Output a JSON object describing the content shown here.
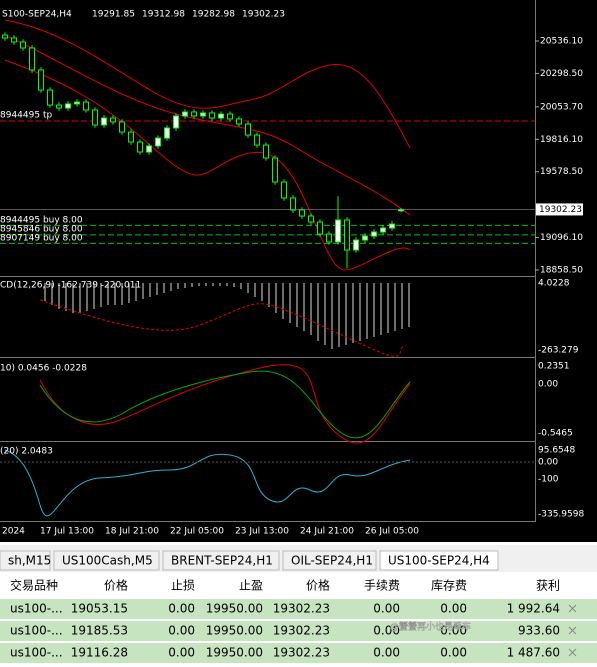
{
  "chart_data": {
    "type": "candlestick",
    "symbol": "S100-SEP24,H4",
    "ylim": [
      18821.9,
      20836.5
    ],
    "yticks": [
      {
        "value": 20536.1,
        "label": "20536.10"
      },
      {
        "value": 20298.5,
        "label": "20298.50"
      },
      {
        "value": 20053.7,
        "label": "20053.70"
      },
      {
        "value": 19816.1,
        "label": "19816.10"
      },
      {
        "value": 19578.5,
        "label": "19578.50"
      },
      {
        "value": 19096.1,
        "label": "19096.10"
      },
      {
        "value": 18858.5,
        "label": "18858.50"
      }
    ],
    "up_color": "#ffffff",
    "down_color": "#000000",
    "wick_color": "#00ff00",
    "open": [
      20580,
      20558,
      20529,
      20485,
      20324,
      20177,
      20067,
      20045,
      20075,
      20089,
      20031,
      19921,
      19972,
      19943,
      19869,
      19796,
      19723,
      19767,
      19825,
      19899,
      19987,
      20016,
      19987,
      20009,
      19972,
      20001,
      19965,
      19928,
      19847,
      19774,
      19679,
      19503,
      19386,
      19298,
      19254,
      19210,
      19122,
      19064,
      19225,
      19005,
      19078,
      19107,
      19137,
      19166,
      19291.85
    ],
    "high": [
      20600,
      20578,
      20549,
      20505,
      20344,
      20197,
      20087,
      20095,
      20109,
      20109,
      20051,
      19992,
      19992,
      19963,
      19889,
      19816,
      19787,
      19845,
      19919,
      20007,
      20036,
      20036,
      20029,
      20029,
      20021,
      20021,
      19985,
      19948,
      19867,
      19794,
      19699,
      19523,
      19406,
      19318,
      19274,
      19230,
      19142,
      19400,
      19245,
      19098,
      19127,
      19157,
      19186,
      19215,
      19312.98
    ],
    "low": [
      20538,
      20509,
      20465,
      20304,
      20157,
      20047,
      20025,
      20025,
      20055,
      20011,
      19901,
      19901,
      19923,
      19849,
      19776,
      19703,
      19703,
      19747,
      19805,
      19879,
      19967,
      19967,
      19967,
      19952,
      19952,
      19945,
      19908,
      19827,
      19754,
      19659,
      19483,
      19366,
      19278,
      19234,
      19190,
      19102,
      19044,
      19044,
      18870,
      18985,
      19058,
      19087,
      19117,
      19146,
      19282.98
    ],
    "close": [
      20558,
      20529,
      20485,
      20324,
      20177,
      20067,
      20045,
      20075,
      20089,
      20031,
      19921,
      19972,
      19943,
      19869,
      19796,
      19723,
      19767,
      19825,
      19899,
      19987,
      20016,
      19987,
      20009,
      19972,
      20001,
      19965,
      19928,
      19847,
      19774,
      19679,
      19503,
      19386,
      19298,
      19254,
      19210,
      19122,
      19064,
      19225,
      19005,
      19078,
      19107,
      19137,
      19166,
      19195,
      19302.23
    ],
    "orders": [
      {
        "label": "8944495 buy 8.00",
        "price": 19185.53
      },
      {
        "label": "8945846 buy 8.00",
        "price": 19116.28
      },
      {
        "label": "8907149 buy 8.00",
        "price": 19053.15
      }
    ],
    "tp": {
      "label": "8944495 tp",
      "price": 19950
    },
    "x_labels": [
      "2024",
      "17 Jul 13:00",
      "18 Jul 21:00",
      "22 Jul 05:00",
      "23 Jul 13:00",
      "24 Jul 21:00",
      "26 Jul 05:00"
    ],
    "panels": [
      {
        "label": "CD(12,26,9) -162.739 -220.011",
        "ticks": [
          "4.0228",
          "-263.279"
        ]
      },
      {
        "label": "10) 0.0456 -0.0228",
        "ticks": [
          "0.2351",
          "0.00",
          "-0.5465"
        ]
      },
      {
        "label": "(20) 2.0483",
        "ticks": [
          "95.6548",
          "0.00",
          "-100",
          "-335.9598"
        ]
      }
    ]
  },
  "tabs": [
    "sh,M15",
    "US100Cash,M5",
    "BRENT-SEP24,H1",
    "OIL-SEP24,H1",
    "US100-SEP24,H4"
  ],
  "table": {
    "header": [
      "交易品种",
      "价格",
      "止损",
      "止盈",
      "价格",
      "手续费",
      "库存费",
      "获利"
    ],
    "rows": [
      [
        "us100-...",
        "19053.15",
        "0.00",
        "19950.00",
        "19302.23",
        "0.00",
        "0.00",
        "1 992.64"
      ],
      [
        "us100-...",
        "19185.53",
        "0.00",
        "19950.00",
        "19302.23",
        "0.00",
        "0.00",
        "933.60"
      ],
      [
        "us100-...",
        "19116.28",
        "0.00",
        "19950.00",
        "19302.23",
        "0.00",
        "0.00",
        "1 487.60"
      ]
    ]
  },
  "watermark": "@蟹蟹再小也是牵车"
}
